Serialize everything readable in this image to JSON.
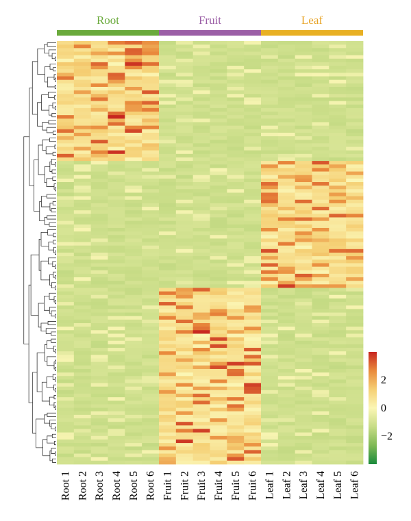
{
  "chart_data": {
    "type": "heatmap",
    "title": "",
    "groups": [
      {
        "name": "Root",
        "color": "#6aaa3c",
        "label_color": "#6aaa3c"
      },
      {
        "name": "Fruit",
        "color": "#9b5fa6",
        "label_color": "#9b5fa6"
      },
      {
        "name": "Leaf",
        "color": "#e8b023",
        "label_color": "#e8a52a"
      }
    ],
    "columns": [
      "Root 1",
      "Root 2",
      "Root 3",
      "Root 4",
      "Root 5",
      "Root 6",
      "Fruit 1",
      "Fruit 2",
      "Fruit 3",
      "Fruit 4",
      "Fruit 5",
      "Fruit 6",
      "Leaf 1",
      "Leaf 2",
      "Leaf 3",
      "Leaf 4",
      "Leaf 5",
      "Leaf 6"
    ],
    "column_groups": [
      0,
      0,
      0,
      0,
      0,
      0,
      1,
      1,
      1,
      1,
      1,
      1,
      2,
      2,
      2,
      2,
      2,
      2
    ],
    "n_rows": 120,
    "blocks": [
      {
        "rows": [
          0,
          34
        ],
        "pattern": "root_high",
        "level": 1.5
      },
      {
        "rows": [
          34,
          70
        ],
        "pattern": "leaf_high",
        "level": 1.3
      },
      {
        "rows": [
          70,
          120
        ],
        "pattern": "fruit_high",
        "level": 1.4
      }
    ],
    "color_scale": {
      "min": -4,
      "max": 4,
      "ticks": [
        2,
        0,
        -2
      ],
      "tick_labels": [
        "2",
        "0",
        "−2"
      ],
      "colors": [
        "#1a8a3c",
        "#7fb955",
        "#c7dc86",
        "#fbf6b5",
        "#f5cf74",
        "#e98a3c",
        "#c7251f"
      ]
    },
    "dendrogram": "row"
  }
}
